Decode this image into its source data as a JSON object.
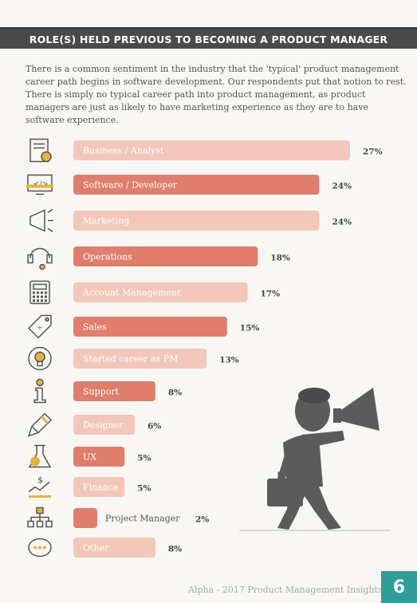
{
  "title": "ROLE(S) HELD PREVIOUS TO BECOMING A PRODUCT MANAGER",
  "intro": "There is a common sentiment in the industry that the 'typical' product management career path begins in software development. Our respondents put that notion to rest. There is simply no typical career path into product management, as product managers are just as likely to have marketing experience as they are to have software experience.",
  "footer": "Alpha - 2017 Product Management Insights",
  "page_number": "6",
  "colors": {
    "dark_bar": "#e07e6b",
    "light_bar": "#f3c7ba",
    "accent_gold": "#e8b435",
    "icon_gray": "#555555",
    "title_band": "#4a4a4a",
    "page_box": "#2f9e9a"
  },
  "chart_data": {
    "type": "bar",
    "orientation": "horizontal",
    "title": "",
    "xlabel": "",
    "ylabel": "",
    "unit": "%",
    "categories": [
      "Business / Analyst",
      "Software / Developer",
      "Marketing",
      "Operations",
      "Account Management",
      "Sales",
      "Started career as PM",
      "Support",
      "Designer",
      "UX",
      "Finance",
      "Project Manager",
      "Other"
    ],
    "values": [
      27,
      24,
      24,
      18,
      17,
      15,
      13,
      8,
      6,
      5,
      5,
      2,
      8
    ],
    "value_labels": [
      "27%",
      "24%",
      "24%",
      "18%",
      "17%",
      "15%",
      "13%",
      "8%",
      "6%",
      "5%",
      "5%",
      "2%",
      "8%"
    ],
    "shade": [
      "light",
      "dark",
      "light",
      "dark",
      "light",
      "dark",
      "light",
      "dark",
      "light",
      "dark",
      "light",
      "dark",
      "light"
    ],
    "icons": [
      "document-search-icon",
      "code-monitor-icon",
      "megaphone-icon",
      "headset-icon",
      "calculator-icon",
      "price-tag-icon",
      "lightbulb-cycle-icon",
      "info-icon",
      "pencil-icon",
      "flask-icon",
      "finance-growth-icon",
      "org-chart-icon",
      "chat-bubble-icon"
    ]
  }
}
